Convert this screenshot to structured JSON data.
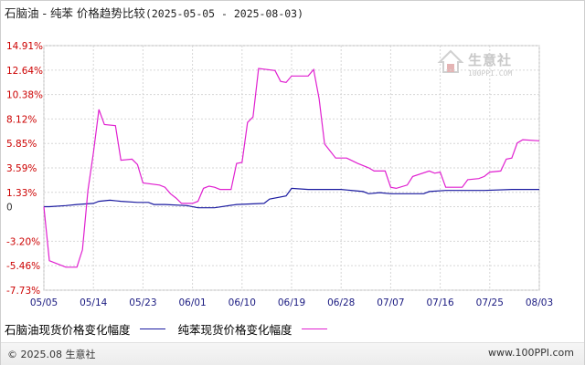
{
  "title": {
    "main": "石脑油 - 纯苯 价格趋势比较",
    "range": "(2025-05-05 - 2025-08-03)"
  },
  "legend": [
    {
      "name": "石脑油现货价格变化幅度",
      "color": "#1a1aa0"
    },
    {
      "name": "纯苯现货价格变化幅度",
      "color": "#e020d0"
    }
  ],
  "watermark": {
    "text": "生意社",
    "url": "100PPI.COM"
  },
  "footer": {
    "copyright": "© 2025.08 生意社",
    "site": "www.100PPI.com"
  },
  "chart_data": {
    "type": "line",
    "ylim": [
      -7.73,
      14.91
    ],
    "y_ticks": [
      "14.91%",
      "12.64%",
      "10.38%",
      "8.12%",
      "5.85%",
      "3.59%",
      "1.33%",
      "0",
      "-3.20%",
      "-5.46%",
      "-7.73%"
    ],
    "y_tick_values": [
      14.91,
      12.64,
      10.38,
      8.12,
      5.85,
      3.59,
      1.33,
      0,
      -3.2,
      -5.46,
      -7.73
    ],
    "x_ticks": [
      "05/05",
      "05/14",
      "05/23",
      "06/01",
      "06/10",
      "06/19",
      "06/28",
      "07/07",
      "07/16",
      "07/25",
      "08/03"
    ],
    "x_range_days": [
      0,
      90
    ],
    "grid": true,
    "series": [
      {
        "name": "石脑油现货价格变化幅度",
        "color": "#1a1aa0",
        "points": [
          [
            0,
            0.0
          ],
          [
            1,
            0.0
          ],
          [
            4,
            0.1
          ],
          [
            6,
            0.2
          ],
          [
            9,
            0.3
          ],
          [
            10,
            0.5
          ],
          [
            12,
            0.6
          ],
          [
            14,
            0.5
          ],
          [
            17,
            0.4
          ],
          [
            19,
            0.4
          ],
          [
            20,
            0.2
          ],
          [
            22,
            0.2
          ],
          [
            26,
            0.1
          ],
          [
            28,
            -0.1
          ],
          [
            31,
            -0.1
          ],
          [
            35,
            0.2
          ],
          [
            40,
            0.3
          ],
          [
            41,
            0.7
          ],
          [
            44,
            1.0
          ],
          [
            45,
            1.7
          ],
          [
            48,
            1.6
          ],
          [
            54,
            1.6
          ],
          [
            58,
            1.4
          ],
          [
            59,
            1.2
          ],
          [
            61,
            1.3
          ],
          [
            63,
            1.2
          ],
          [
            69,
            1.2
          ],
          [
            70,
            1.4
          ],
          [
            73,
            1.5
          ],
          [
            80,
            1.5
          ],
          [
            85,
            1.6
          ],
          [
            90,
            1.6
          ]
        ]
      },
      {
        "name": "纯苯现货价格变化幅度",
        "color": "#e020d0",
        "points": [
          [
            0,
            0.0
          ],
          [
            1,
            -5.0
          ],
          [
            2,
            -5.2
          ],
          [
            3,
            -5.4
          ],
          [
            4,
            -5.6
          ],
          [
            6,
            -5.6
          ],
          [
            7,
            -4.0
          ],
          [
            8,
            1.5
          ],
          [
            9,
            5.0
          ],
          [
            10,
            9.0
          ],
          [
            11,
            7.6
          ],
          [
            13,
            7.5
          ],
          [
            14,
            4.3
          ],
          [
            16,
            4.4
          ],
          [
            17,
            3.9
          ],
          [
            18,
            2.2
          ],
          [
            21,
            2.0
          ],
          [
            22,
            1.8
          ],
          [
            23,
            1.2
          ],
          [
            24,
            0.8
          ],
          [
            25,
            0.3
          ],
          [
            27,
            0.3
          ],
          [
            28,
            0.5
          ],
          [
            29,
            1.7
          ],
          [
            30,
            1.9
          ],
          [
            31,
            1.8
          ],
          [
            32,
            1.6
          ],
          [
            34,
            1.6
          ],
          [
            35,
            4.0
          ],
          [
            36,
            4.1
          ],
          [
            37,
            7.8
          ],
          [
            38,
            8.3
          ],
          [
            39,
            12.8
          ],
          [
            42,
            12.6
          ],
          [
            43,
            11.6
          ],
          [
            44,
            11.5
          ],
          [
            45,
            12.1
          ],
          [
            48,
            12.1
          ],
          [
            49,
            12.7
          ],
          [
            50,
            10.0
          ],
          [
            51,
            5.8
          ],
          [
            53,
            4.5
          ],
          [
            55,
            4.5
          ],
          [
            57,
            4.0
          ],
          [
            59,
            3.6
          ],
          [
            60,
            3.3
          ],
          [
            62,
            3.3
          ],
          [
            63,
            1.8
          ],
          [
            64,
            1.7
          ],
          [
            66,
            2.0
          ],
          [
            67,
            2.8
          ],
          [
            70,
            3.3
          ],
          [
            71,
            3.1
          ],
          [
            72,
            3.2
          ],
          [
            73,
            1.8
          ],
          [
            76,
            1.8
          ],
          [
            77,
            2.5
          ],
          [
            79,
            2.6
          ],
          [
            80,
            2.8
          ],
          [
            81,
            3.2
          ],
          [
            83,
            3.3
          ],
          [
            84,
            4.4
          ],
          [
            85,
            4.5
          ],
          [
            86,
            5.9
          ],
          [
            87,
            6.2
          ],
          [
            90,
            6.1
          ]
        ]
      }
    ]
  }
}
